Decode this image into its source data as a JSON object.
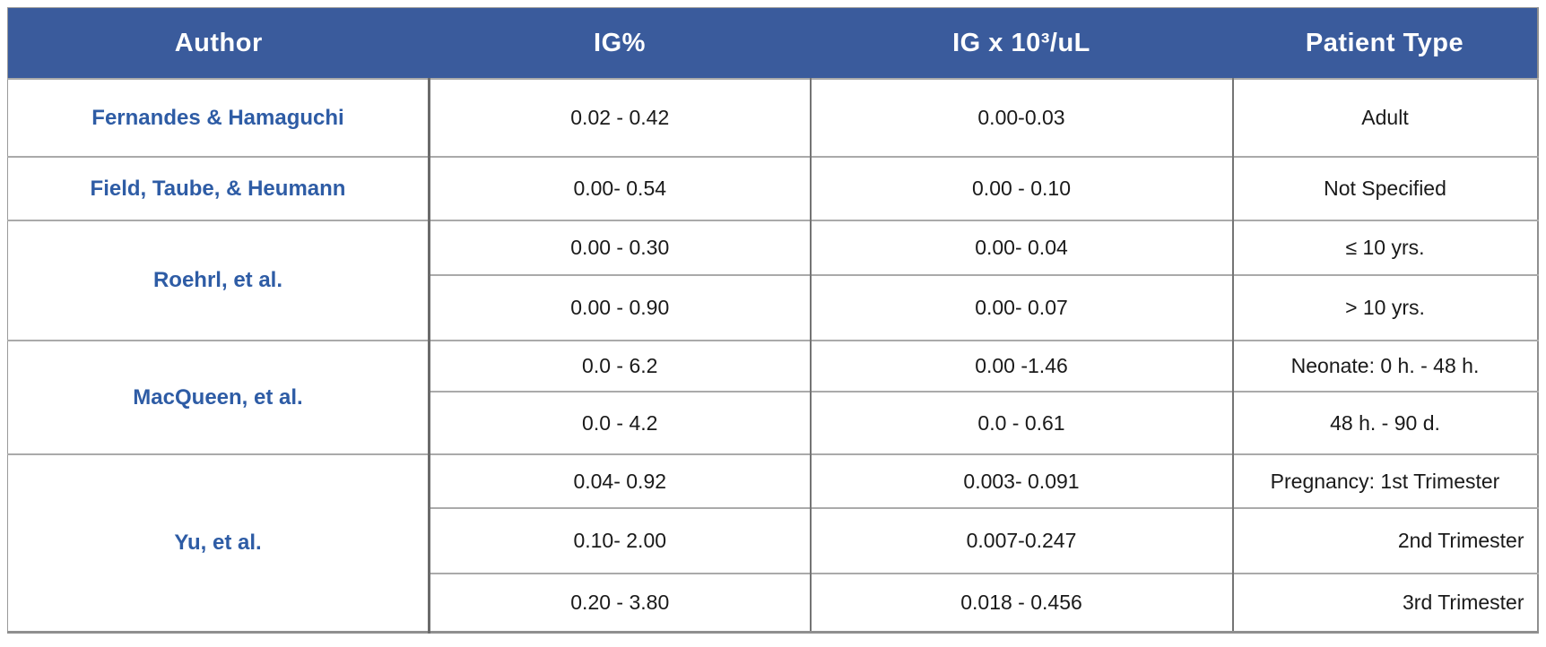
{
  "table": {
    "columns": [
      {
        "label": "Author"
      },
      {
        "label": "IG%"
      },
      {
        "label": "IG x 10³/uL"
      },
      {
        "label": "Patient Type"
      }
    ],
    "groups": [
      {
        "author": "Fernandes & Hamaguchi",
        "rows": [
          {
            "ig_pct": "0.02 - 0.42",
            "ig_abs": "0.00-0.03",
            "patient": "Adult",
            "patient_align": "center"
          }
        ]
      },
      {
        "author": "Field, Taube, & Heumann",
        "rows": [
          {
            "ig_pct": "0.00- 0.54",
            "ig_abs": "0.00 - 0.10",
            "patient": "Not Specified",
            "patient_align": "center"
          }
        ]
      },
      {
        "author": "Roehrl, et al.",
        "rows": [
          {
            "ig_pct": "0.00 - 0.30",
            "ig_abs": "0.00- 0.04",
            "patient": "≤ 10 yrs.",
            "patient_align": "center"
          },
          {
            "ig_pct": "0.00 - 0.90",
            "ig_abs": "0.00- 0.07",
            "patient": "> 10 yrs.",
            "patient_align": "center"
          }
        ]
      },
      {
        "author": "MacQueen, et al.",
        "rows": [
          {
            "ig_pct": "0.0 - 6.2",
            "ig_abs": "0.00 -1.46",
            "patient": "Neonate: 0 h. - 48 h.",
            "patient_align": "center"
          },
          {
            "ig_pct": "0.0 - 4.2",
            "ig_abs": "0.0 - 0.61",
            "patient": "48 h. - 90 d.",
            "patient_align": "center"
          }
        ]
      },
      {
        "author": "Yu, et al.",
        "rows": [
          {
            "ig_pct": "0.04- 0.92",
            "ig_abs": "0.003- 0.091",
            "patient": "Pregnancy: 1st Trimester",
            "patient_align": "center"
          },
          {
            "ig_pct": "0.10- 2.00",
            "ig_abs": "0.007-0.247",
            "patient": "2nd Trimester",
            "patient_align": "right"
          },
          {
            "ig_pct": "0.20 - 3.80",
            "ig_abs": "0.018 - 0.456",
            "patient": "3rd Trimester",
            "patient_align": "right"
          }
        ]
      }
    ]
  },
  "colors": {
    "header_bg": "#3A5B9C",
    "header_text": "#FFFFFF",
    "author_text": "#2E5CA5",
    "body_text": "#1A1A1A",
    "thick_divider": "#6B6B6B",
    "grid_line": "#AAAAAA"
  },
  "chart_data": {
    "type": "table",
    "columns": [
      "Author",
      "IG%",
      "IG x 10³/uL",
      "Patient Type"
    ],
    "rows": [
      [
        "Fernandes & Hamaguchi",
        "0.02 - 0.42",
        "0.00-0.03",
        "Adult"
      ],
      [
        "Field, Taube, & Heumann",
        "0.00- 0.54",
        "0.00 - 0.10",
        "Not Specified"
      ],
      [
        "Roehrl, et al.",
        "0.00 - 0.30",
        "0.00- 0.04",
        "≤ 10 yrs."
      ],
      [
        "Roehrl, et al.",
        "0.00 - 0.90",
        "0.00- 0.07",
        "> 10 yrs."
      ],
      [
        "MacQueen, et al.",
        "0.0 - 6.2",
        "0.00 -1.46",
        "Neonate: 0 h. - 48 h."
      ],
      [
        "MacQueen, et al.",
        "0.0 - 4.2",
        "0.0 - 0.61",
        "48 h. - 90 d."
      ],
      [
        "Yu, et al.",
        "0.04- 0.92",
        "0.003- 0.091",
        "Pregnancy: 1st Trimester"
      ],
      [
        "Yu, et al.",
        "0.10- 2.00",
        "0.007-0.247",
        "2nd Trimester"
      ],
      [
        "Yu, et al.",
        "0.20 - 3.80",
        "0.018 - 0.456",
        "3rd Trimester"
      ]
    ]
  }
}
